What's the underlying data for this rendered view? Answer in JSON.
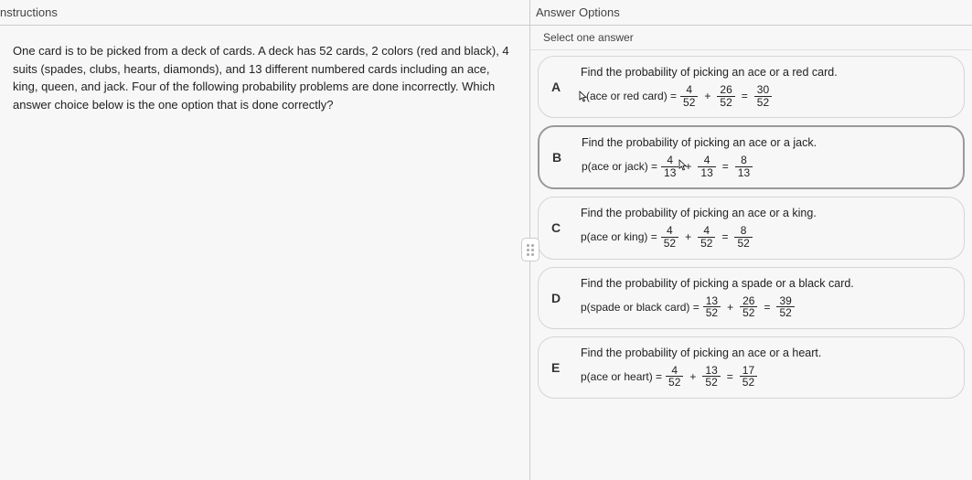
{
  "left": {
    "header": "nstructions",
    "question": "One card is to be picked from a deck of cards. A deck has 52 cards, 2 colors (red and black), 4 suits (spades, clubs, hearts, diamonds), and 13 different numbered cards including an ace, king, queen, and jack. Four of the following probability problems are done incorrectly. Which answer choice below is the one option that is done correctly?"
  },
  "right": {
    "header": "Answer Options",
    "subheader": "Select one answer",
    "options": [
      {
        "letter": "A",
        "title": "Find the probability of picking an ace or a red card.",
        "lhs": "p(ace or red card) =",
        "terms": [
          {
            "num": "4",
            "den": "52"
          },
          {
            "op": "+"
          },
          {
            "num": "26",
            "den": "52"
          },
          {
            "op": "="
          },
          {
            "num": "30",
            "den": "52"
          }
        ],
        "selected": false,
        "cursor_on_lhs": true
      },
      {
        "letter": "B",
        "title": "Find the probability of picking an ace or a jack.",
        "lhs": "p(ace or jack) =",
        "terms": [
          {
            "num": "4",
            "den": "13"
          },
          {
            "op": "+",
            "cursor": true
          },
          {
            "num": "4",
            "den": "13"
          },
          {
            "op": "="
          },
          {
            "num": "8",
            "den": "13"
          }
        ],
        "selected": true
      },
      {
        "letter": "C",
        "title": "Find the probability of picking an ace or a king.",
        "lhs": "p(ace or king) =",
        "terms": [
          {
            "num": "4",
            "den": "52"
          },
          {
            "op": "+"
          },
          {
            "num": "4",
            "den": "52"
          },
          {
            "op": "="
          },
          {
            "num": "8",
            "den": "52"
          }
        ],
        "selected": false
      },
      {
        "letter": "D",
        "title": "Find the probability of picking a spade or a black card.",
        "lhs": "p(spade or black card) =",
        "terms": [
          {
            "num": "13",
            "den": "52"
          },
          {
            "op": "+"
          },
          {
            "num": "26",
            "den": "52"
          },
          {
            "op": "="
          },
          {
            "num": "39",
            "den": "52"
          }
        ],
        "selected": false
      },
      {
        "letter": "E",
        "title": "Find the probability of picking an ace or a heart.",
        "lhs": "p(ace or heart) =",
        "terms": [
          {
            "num": "4",
            "den": "52"
          },
          {
            "op": "+"
          },
          {
            "num": "13",
            "den": "52"
          },
          {
            "op": "="
          },
          {
            "num": "17",
            "den": "52"
          }
        ],
        "selected": false
      }
    ]
  },
  "colors": {
    "border": "#d5d5d5",
    "selected_border": "#999999",
    "text": "#222222",
    "bg": "#f7f7f7"
  }
}
